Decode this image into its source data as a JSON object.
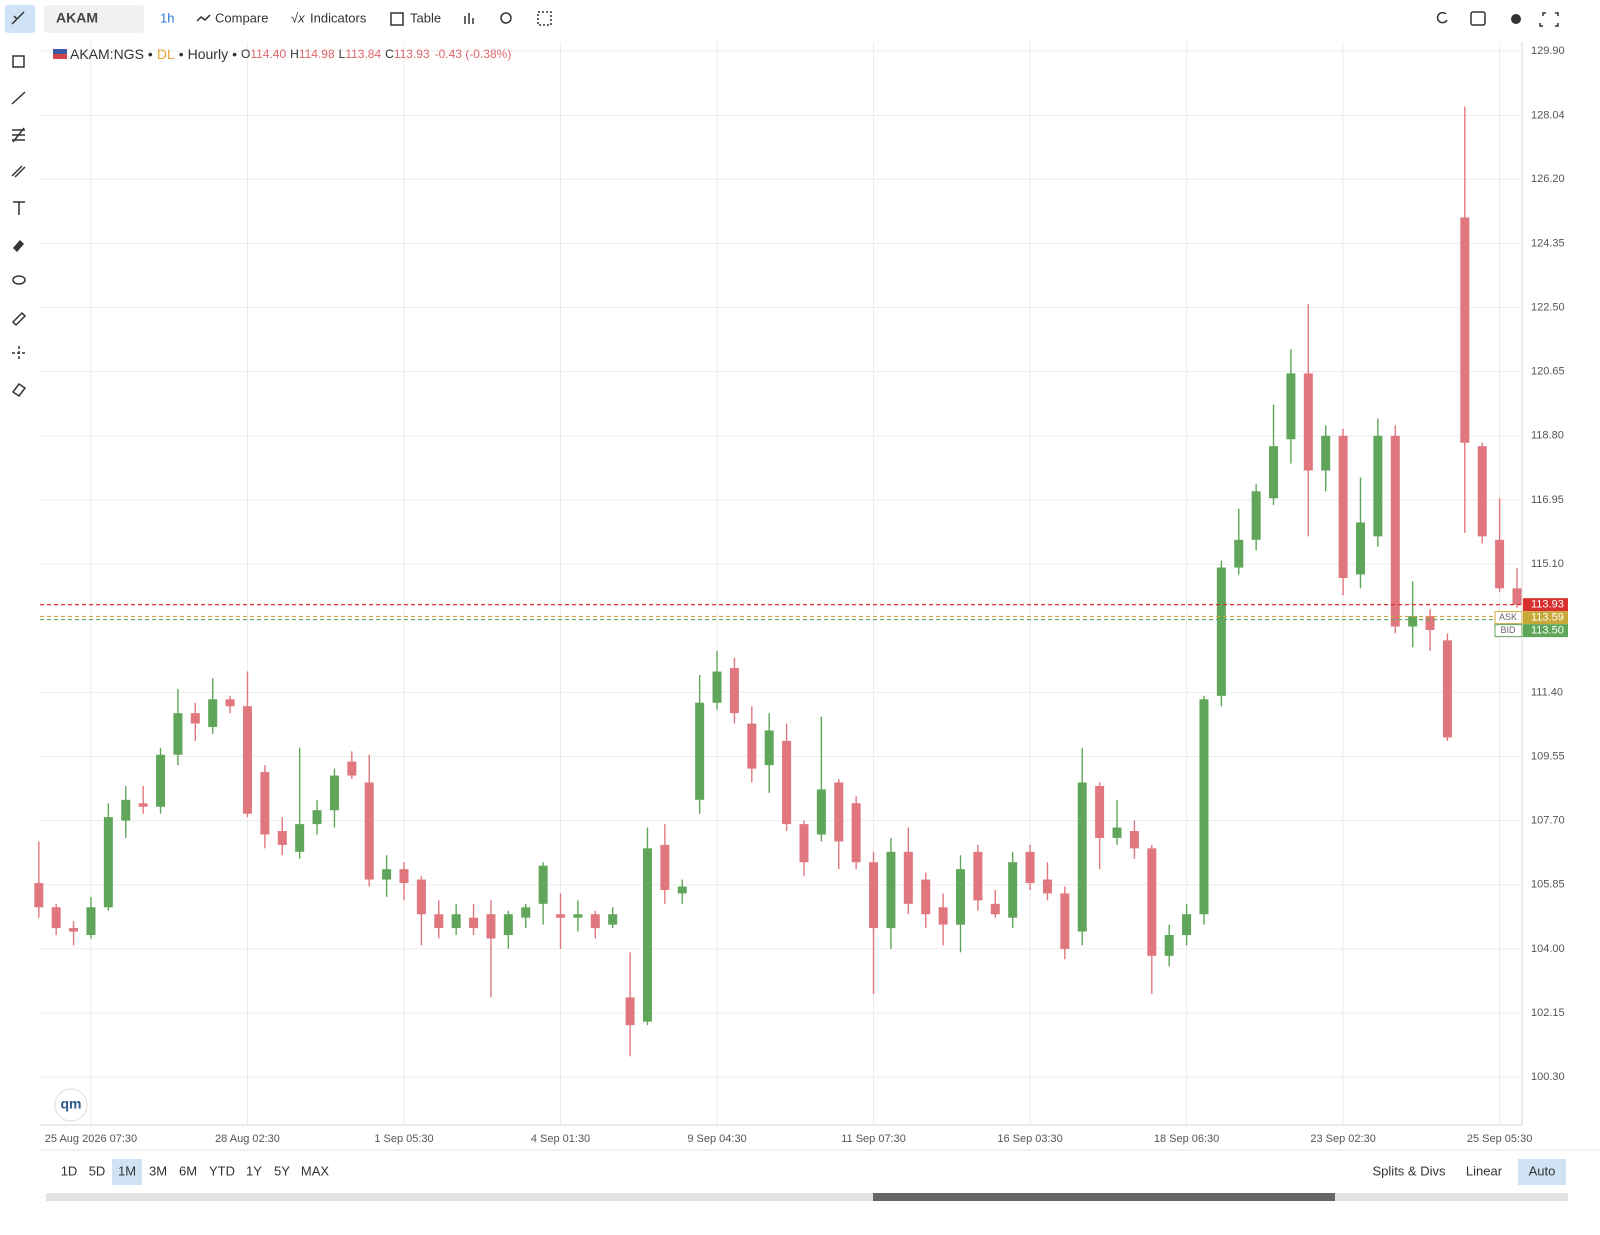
{
  "toolbar": {
    "symbol": "AKAM",
    "interval": "1h",
    "buttons": [
      "Compare",
      "Indicators",
      "Table"
    ]
  },
  "ranges": [
    "1D",
    "5D",
    "1M",
    "3M",
    "6M",
    "YTD",
    "1Y",
    "5Y",
    "MAX"
  ],
  "selected_range": "1M",
  "scale_buttons": [
    "Splits & Divs",
    "Linear",
    "Auto"
  ],
  "selected_scale": "Auto",
  "logo": "qm",
  "chart_data": {
    "type": "candlestick",
    "legend": {
      "symbol": "AKAM:NGS",
      "source": "DL",
      "interval": "Hourly",
      "fields": [
        {
          "key": "O",
          "value": "114.40"
        },
        {
          "key": "H",
          "value": "114.98"
        },
        {
          "key": "L",
          "value": "113.84"
        },
        {
          "key": "C",
          "value": "113.93"
        }
      ],
      "change": "-0.43 (-0.38%)"
    },
    "categories": [
      null,
      null,
      null,
      "25 Aug 2026 07:30",
      null,
      null,
      null,
      null,
      null,
      null,
      null,
      null,
      "28 Aug 02:30",
      null,
      null,
      null,
      null,
      null,
      null,
      null,
      null,
      "1 Sep 05:30",
      null,
      null,
      null,
      null,
      null,
      null,
      null,
      null,
      "4 Sep 01:30",
      null,
      null,
      null,
      null,
      null,
      null,
      null,
      null,
      "9 Sep 04:30",
      null,
      null,
      null,
      null,
      null,
      null,
      null,
      null,
      "11 Sep 07:30",
      null,
      null,
      null,
      null,
      null,
      null,
      null,
      null,
      "16 Sep 03:30",
      null,
      null,
      null,
      null,
      null,
      null,
      null,
      null,
      "18 Sep 06:30",
      null,
      null,
      null,
      null,
      null,
      null,
      null,
      null,
      "23 Sep 02:30",
      null,
      null,
      null,
      null,
      null,
      null,
      null,
      null,
      "25 Sep 05:30",
      null
    ],
    "open": [
      105.9,
      105.2,
      104.6,
      104.4,
      105.2,
      107.7,
      108.2,
      108.1,
      109.6,
      110.8,
      110.4,
      111.2,
      111.0,
      109.1,
      107.4,
      106.8,
      107.6,
      108.0,
      109.4,
      108.8,
      106.0,
      106.3,
      106.0,
      105.0,
      104.6,
      104.9,
      105.0,
      104.4,
      104.9,
      105.3,
      105.0,
      104.9,
      105.0,
      104.7,
      102.6,
      101.9,
      107.0,
      105.6,
      108.3,
      111.1,
      112.1,
      110.5,
      109.3,
      110.0,
      107.6,
      107.3,
      108.8,
      108.2,
      106.5,
      104.6,
      106.8,
      106.0,
      105.2,
      104.7,
      106.8,
      105.3,
      104.9,
      106.8,
      106.0,
      105.6,
      104.5,
      108.7,
      107.2,
      107.4,
      106.9,
      103.8,
      104.4,
      105.0,
      111.3,
      115.0,
      115.8,
      117.0,
      118.7,
      120.6,
      117.8,
      118.8,
      114.8,
      115.9,
      118.8,
      113.3,
      113.6,
      112.9,
      125.1,
      118.5,
      115.8,
      114.4
    ],
    "high": [
      107.1,
      105.3,
      104.8,
      105.5,
      108.2,
      108.7,
      108.7,
      109.8,
      111.5,
      111.1,
      111.8,
      111.3,
      112.0,
      109.3,
      107.8,
      109.8,
      108.3,
      109.2,
      109.7,
      109.6,
      106.7,
      106.5,
      106.1,
      105.4,
      105.3,
      105.3,
      105.4,
      105.1,
      105.3,
      106.5,
      105.6,
      105.4,
      105.1,
      105.2,
      103.9,
      107.5,
      107.6,
      106.0,
      111.9,
      112.6,
      112.4,
      111.0,
      110.8,
      110.5,
      107.7,
      110.7,
      108.9,
      108.4,
      106.8,
      107.2,
      107.5,
      106.2,
      105.6,
      106.7,
      107.0,
      105.7,
      106.8,
      107.0,
      106.5,
      105.8,
      109.8,
      108.8,
      108.3,
      107.7,
      107.0,
      104.7,
      105.3,
      111.3,
      115.2,
      116.7,
      117.4,
      119.7,
      121.3,
      122.6,
      119.1,
      119.0,
      117.6,
      119.3,
      119.1,
      114.6,
      113.8,
      113.1,
      128.3,
      118.6,
      117.0,
      114.98
    ],
    "low": [
      104.9,
      104.4,
      104.1,
      104.3,
      105.1,
      107.2,
      107.9,
      107.9,
      109.3,
      110.0,
      110.2,
      110.8,
      107.8,
      106.9,
      106.7,
      106.6,
      107.3,
      107.5,
      108.9,
      105.8,
      105.5,
      105.4,
      104.1,
      104.3,
      104.4,
      104.4,
      102.6,
      104.0,
      104.6,
      104.7,
      104.0,
      104.5,
      104.3,
      104.6,
      100.9,
      101.8,
      105.3,
      105.3,
      107.9,
      110.9,
      110.5,
      108.8,
      108.5,
      107.4,
      106.1,
      107.1,
      106.3,
      106.3,
      102.7,
      104.0,
      105.0,
      104.6,
      104.1,
      103.9,
      105.1,
      104.9,
      104.6,
      105.7,
      105.4,
      103.7,
      104.1,
      106.3,
      107.0,
      106.6,
      102.7,
      103.5,
      104.1,
      104.7,
      111.0,
      114.8,
      115.5,
      116.8,
      118.0,
      115.9,
      117.2,
      114.2,
      114.4,
      115.6,
      113.1,
      112.7,
      112.6,
      110.0,
      116.0,
      115.7,
      114.3,
      113.84
    ],
    "close": [
      105.2,
      104.6,
      104.5,
      105.2,
      107.8,
      108.3,
      108.1,
      109.6,
      110.8,
      110.5,
      111.2,
      111.0,
      107.9,
      107.3,
      107.0,
      107.6,
      108.0,
      109.0,
      109.0,
      106.0,
      106.3,
      105.9,
      105.0,
      104.6,
      105.0,
      104.6,
      104.3,
      105.0,
      105.2,
      106.4,
      104.9,
      105.0,
      104.6,
      105.0,
      101.8,
      106.9,
      105.7,
      105.8,
      111.1,
      112.0,
      110.8,
      109.2,
      110.3,
      107.6,
      106.5,
      108.6,
      107.1,
      106.5,
      104.6,
      106.8,
      105.3,
      105.0,
      104.7,
      106.3,
      105.4,
      105.0,
      106.5,
      105.9,
      105.6,
      104.0,
      108.8,
      107.2,
      107.5,
      106.9,
      103.8,
      104.4,
      105.0,
      111.2,
      115.0,
      115.8,
      117.2,
      118.5,
      120.6,
      117.8,
      118.8,
      114.7,
      116.3,
      118.8,
      113.3,
      113.6,
      113.2,
      110.1,
      118.6,
      115.9,
      114.4,
      113.93
    ],
    "up_color": "#5fa65a",
    "down_color": "#e0777e",
    "ylim": [
      98.92,
      130.16
    ],
    "yticks": [
      {
        "value": 100.3,
        "label": "100.30"
      },
      {
        "value": 102.15,
        "label": "102.15"
      },
      {
        "value": 104.0,
        "label": "104.00"
      },
      {
        "value": 105.85,
        "label": "105.85"
      },
      {
        "value": 107.7,
        "label": "107.70"
      },
      {
        "value": 109.55,
        "label": "109.55"
      },
      {
        "value": 111.4,
        "label": "111.40"
      },
      {
        "value": 115.1,
        "label": "115.10"
      },
      {
        "value": 116.95,
        "label": "116.95"
      },
      {
        "value": 118.8,
        "label": "118.80"
      },
      {
        "value": 120.65,
        "label": "120.65"
      },
      {
        "value": 122.5,
        "label": "122.50"
      },
      {
        "value": 124.35,
        "label": "124.35"
      },
      {
        "value": 126.2,
        "label": "126.20"
      },
      {
        "value": 128.04,
        "label": "128.04"
      },
      {
        "value": 129.9,
        "label": "129.90"
      }
    ],
    "grid": true,
    "price_lines": [
      {
        "value": 113.93,
        "color": "#d9302f"
      },
      {
        "tag": "ASK",
        "value": 113.59,
        "color": "#c9a83a"
      },
      {
        "tag": "BID",
        "value": 113.5,
        "value_label": "113.50",
        "color": "#5fa65a"
      }
    ]
  }
}
